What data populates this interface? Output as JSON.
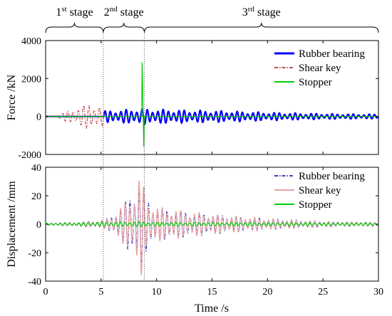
{
  "stages": [
    {
      "label": "1",
      "sup": "st",
      "suffix": " stage",
      "t_start": 0,
      "t_end": 5.2
    },
    {
      "label": "2",
      "sup": "nd",
      "suffix": " stage",
      "t_start": 5.2,
      "t_end": 8.9
    },
    {
      "label": "3",
      "sup": "rd",
      "suffix": " stage",
      "t_start": 8.9,
      "t_end": 30
    }
  ],
  "chart_data": [
    {
      "type": "line",
      "id": "force",
      "ylabel": "Force /kN",
      "xlim": [
        0,
        30
      ],
      "ylim": [
        -2000,
        4000
      ],
      "yticks": [
        -2000,
        0,
        2000,
        4000
      ],
      "ytick_labels": [
        "-2000",
        "0",
        "2000",
        "4000"
      ],
      "legend_position": "top-right",
      "series": [
        {
          "name": "Rubber bearing",
          "color": "#0000ff",
          "style": "solid",
          "envelope": [
            [
              5.2,
              0
            ],
            [
              5.3,
              300
            ],
            [
              7,
              350
            ],
            [
              8.5,
              420
            ],
            [
              9,
              400
            ],
            [
              12,
              350
            ],
            [
              16,
              300
            ],
            [
              20,
              220
            ],
            [
              25,
              150
            ],
            [
              30,
              120
            ]
          ]
        },
        {
          "name": "Shear key",
          "color": "#c0504d",
          "style": "dashdot",
          "envelope": [
            [
              0,
              30
            ],
            [
              1,
              80
            ],
            [
              2,
              300
            ],
            [
              3,
              520
            ],
            [
              4,
              700
            ],
            [
              4.6,
              650
            ],
            [
              5.2,
              500
            ],
            [
              5.3,
              20
            ],
            [
              30,
              10
            ]
          ]
        },
        {
          "name": "Stopper",
          "color": "#00cc00",
          "style": "solid",
          "spikes": [
            [
              8.7,
              2850
            ],
            [
              8.85,
              -1600
            ]
          ]
        }
      ]
    },
    {
      "type": "line",
      "id": "displacement",
      "ylabel": "Displacement /mm",
      "xlabel": "Time /s",
      "xlim": [
        0,
        30
      ],
      "ylim": [
        -40,
        40
      ],
      "xticks": [
        0,
        5,
        10,
        15,
        20,
        25,
        30
      ],
      "xtick_labels": [
        "0",
        "5",
        "10",
        "15",
        "20",
        "25",
        "30"
      ],
      "yticks": [
        -40,
        -20,
        0,
        20,
        40
      ],
      "ytick_labels": [
        "-40",
        "-20",
        "0",
        "20",
        "40"
      ],
      "legend_position": "top-right",
      "series": [
        {
          "name": "Rubber bearing",
          "color": "#4040c0",
          "style": "dashdot",
          "envelope": [
            [
              0,
              0.5
            ],
            [
              3,
              1.5
            ],
            [
              5.3,
              3
            ],
            [
              6,
              6
            ],
            [
              7,
              14
            ],
            [
              8,
              25
            ],
            [
              8.6,
              37
            ],
            [
              9,
              20
            ],
            [
              10,
              12
            ],
            [
              12,
              10
            ],
            [
              15,
              7
            ],
            [
              20,
              4
            ],
            [
              25,
              2
            ],
            [
              30,
              1.5
            ]
          ]
        },
        {
          "name": "Shear key",
          "color": "#e8a0a0",
          "style": "solid",
          "envelope": [
            [
              0,
              0.5
            ],
            [
              3,
              1.5
            ],
            [
              5.3,
              3
            ],
            [
              6,
              6
            ],
            [
              7,
              14
            ],
            [
              8,
              25
            ],
            [
              8.6,
              37
            ],
            [
              9,
              20
            ],
            [
              10,
              12
            ],
            [
              12,
              10
            ],
            [
              15,
              7
            ],
            [
              20,
              4
            ],
            [
              25,
              2
            ],
            [
              30,
              1.5
            ]
          ]
        },
        {
          "name": "Stopper",
          "color": "#00cc00",
          "style": "solid",
          "envelope": [
            [
              0,
              0.8
            ],
            [
              5,
              1.5
            ],
            [
              8.8,
              2
            ],
            [
              10,
              1.5
            ],
            [
              30,
              1
            ]
          ]
        }
      ]
    }
  ]
}
